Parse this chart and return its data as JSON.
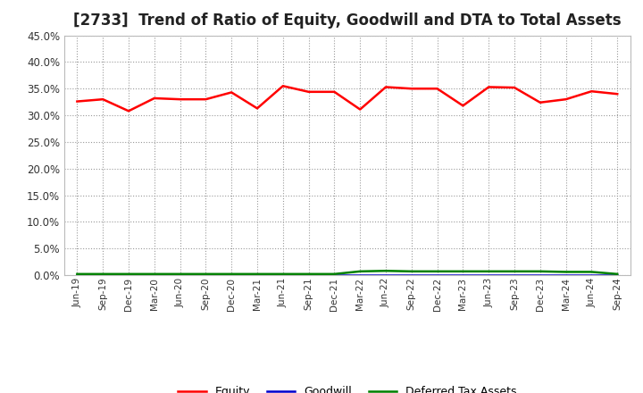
{
  "title": "[2733]  Trend of Ratio of Equity, Goodwill and DTA to Total Assets",
  "x_labels": [
    "Jun-19",
    "Sep-19",
    "Dec-19",
    "Mar-20",
    "Jun-20",
    "Sep-20",
    "Dec-20",
    "Mar-21",
    "Jun-21",
    "Sep-21",
    "Dec-21",
    "Mar-22",
    "Jun-22",
    "Sep-22",
    "Dec-22",
    "Mar-23",
    "Jun-23",
    "Sep-23",
    "Dec-23",
    "Mar-24",
    "Jun-24",
    "Sep-24"
  ],
  "equity": [
    0.326,
    0.33,
    0.308,
    0.332,
    0.33,
    0.33,
    0.343,
    0.313,
    0.355,
    0.344,
    0.344,
    0.311,
    0.353,
    0.35,
    0.35,
    0.318,
    0.353,
    0.352,
    0.324,
    0.33,
    0.345,
    0.34
  ],
  "goodwill": [
    0.0,
    0.0,
    0.0,
    0.0,
    0.0,
    0.0,
    0.0,
    0.0,
    0.0,
    0.0,
    0.0,
    0.0,
    0.0,
    0.0,
    0.0,
    0.0,
    0.0,
    0.0,
    0.0,
    0.0,
    0.0,
    0.0
  ],
  "dta": [
    0.002,
    0.002,
    0.002,
    0.002,
    0.002,
    0.002,
    0.002,
    0.002,
    0.002,
    0.002,
    0.002,
    0.007,
    0.008,
    0.007,
    0.007,
    0.007,
    0.007,
    0.007,
    0.007,
    0.006,
    0.006,
    0.002
  ],
  "equity_color": "#ff0000",
  "goodwill_color": "#0000cd",
  "dta_color": "#008000",
  "ylim": [
    0.0,
    0.45
  ],
  "yticks": [
    0.0,
    0.05,
    0.1,
    0.15,
    0.2,
    0.25,
    0.3,
    0.35,
    0.4,
    0.45
  ],
  "bg_color": "#ffffff",
  "grid_color": "#999999",
  "title_fontsize": 12,
  "legend_labels": [
    "Equity",
    "Goodwill",
    "Deferred Tax Assets"
  ]
}
